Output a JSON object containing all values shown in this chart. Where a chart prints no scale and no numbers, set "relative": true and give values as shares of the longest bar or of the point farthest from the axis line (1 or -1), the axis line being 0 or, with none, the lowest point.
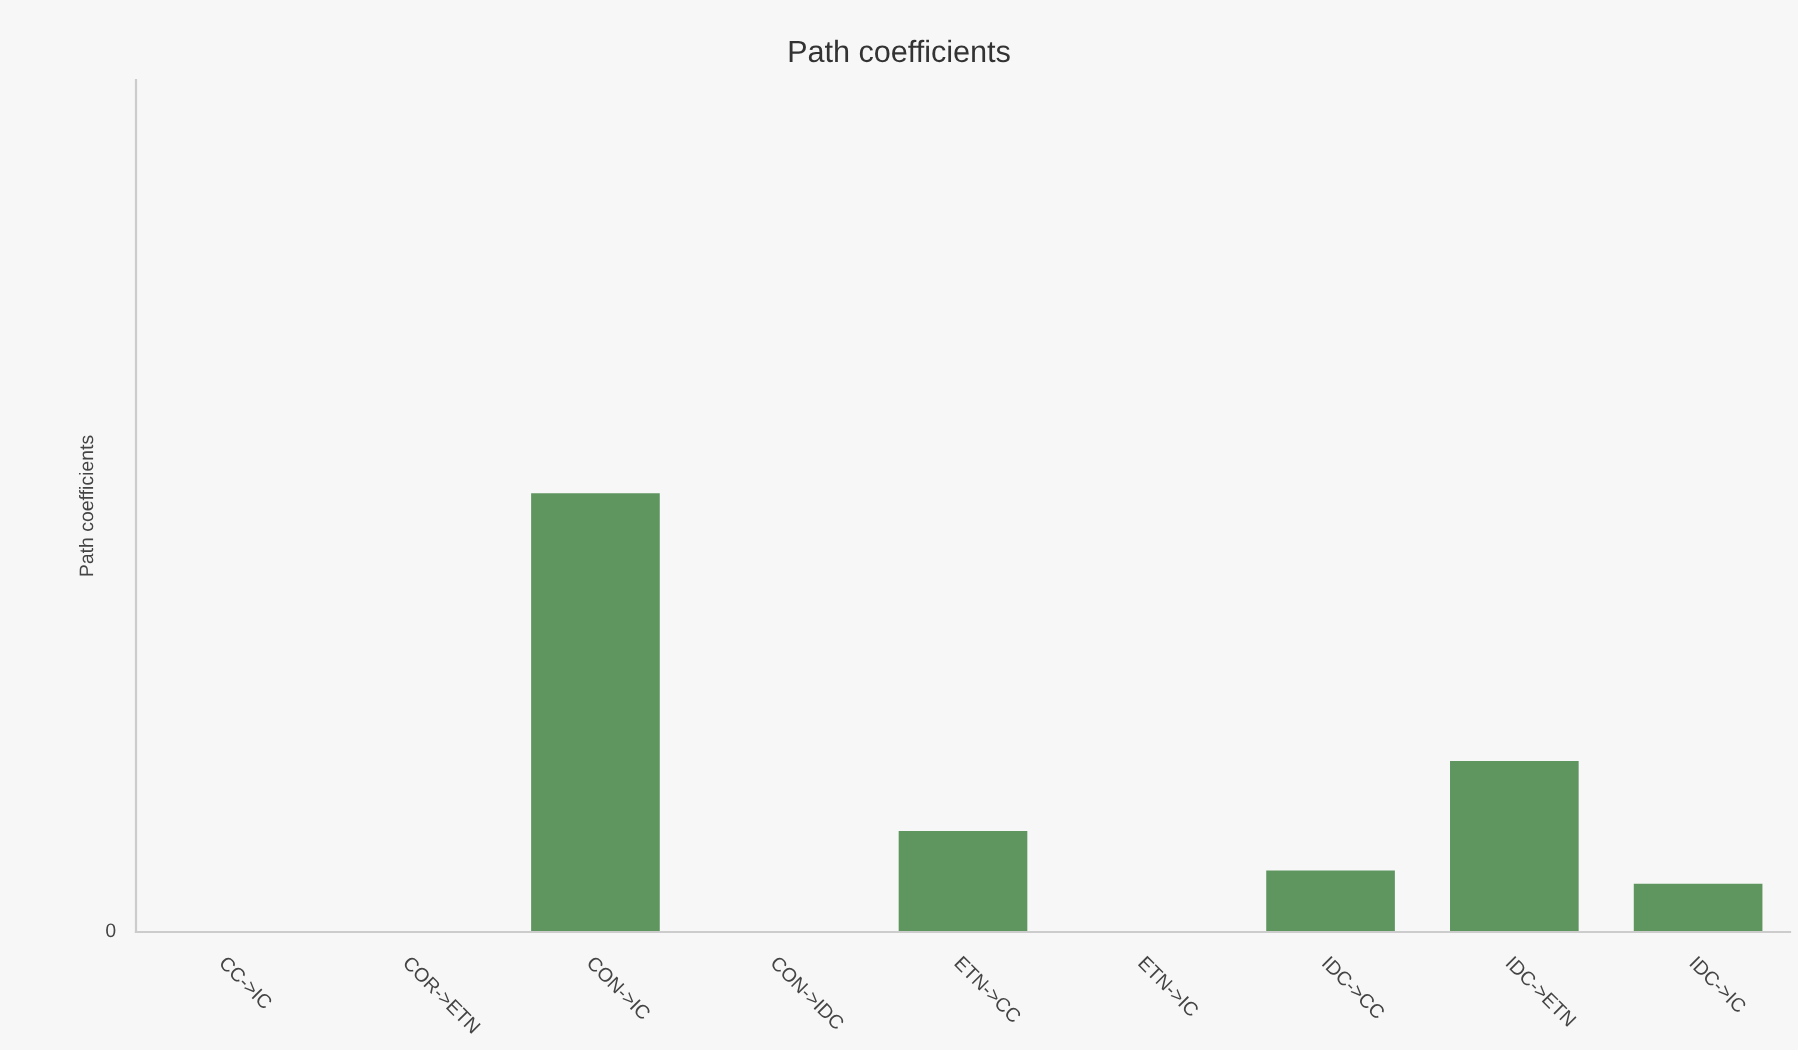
{
  "chart_data": {
    "type": "bar",
    "title": "Path coefficients",
    "ylabel": "Path coefficients",
    "categories": [
      "CC->IC",
      "COR->ETN",
      "CON->IC",
      "CON->IDC",
      "ETN->CC",
      "ETN->IC",
      "IDC->CC",
      "IDC->ETN",
      "IDC->IC"
    ],
    "values": [
      0,
      0,
      1,
      0,
      0.23,
      0,
      0.14,
      0.39,
      0.11
    ],
    "color": "#5f9660",
    "relative": true,
    "grid": false,
    "legend": false,
    "annotations": [
      "0"
    ]
  }
}
